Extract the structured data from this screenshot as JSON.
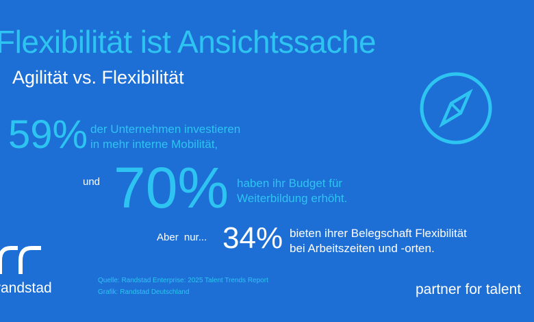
{
  "title": "Flexibilität ist Ansichtssache",
  "subtitle": "Agilität vs. Flexibilität",
  "stats": [
    {
      "prefix": "",
      "value": "59%",
      "text_line1": "der Unternehmen investieren",
      "text_line2": "in mehr interne Mobilität,"
    },
    {
      "prefix": "und",
      "value": "70%",
      "text_line1": "haben ihr Budget für",
      "text_line2": "Weiterbildung erhöht."
    },
    {
      "prefix": "Aber nur...",
      "value": "34%",
      "text_line1": "bieten ihrer Belegschaft Flexibilität",
      "text_line2": "bei Arbeitszeiten und -orten."
    }
  ],
  "source": {
    "line1": "Quelle: Randstad Enterprise: 2025 Talent Trends Report",
    "line2": "Grafik: Randstad Deutschland"
  },
  "brand": {
    "wordmark": "randstad",
    "tagline": "partner for talent"
  },
  "icons": {
    "compass": "compass-icon",
    "logo": "randstad-logo-mark"
  },
  "colors": {
    "background": "#1d6fd6",
    "accent": "#2ec4f1",
    "text": "#ffffff"
  }
}
